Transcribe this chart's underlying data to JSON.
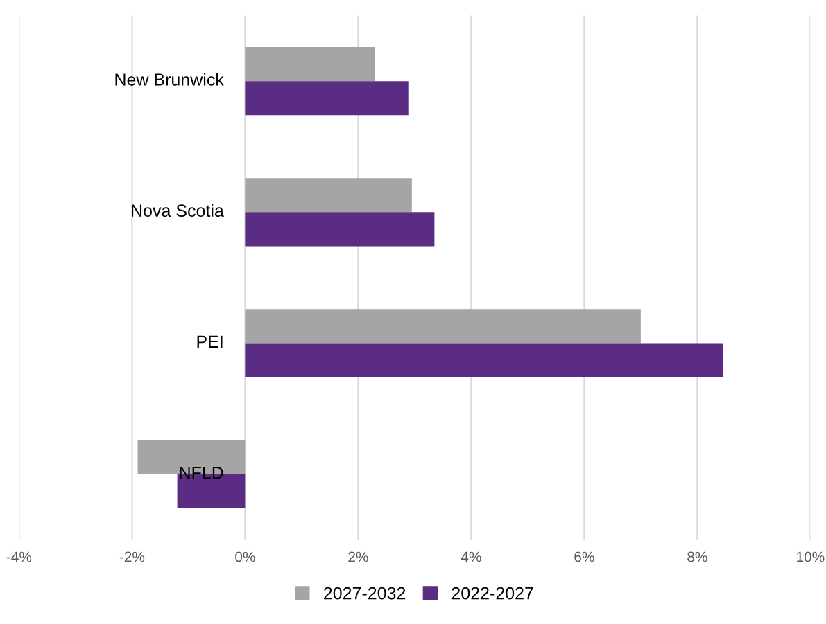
{
  "chart_data": {
    "type": "bar",
    "orientation": "horizontal",
    "categories": [
      "New Brunwick",
      "Nova Scotia",
      "PEI",
      "NFLD"
    ],
    "series": [
      {
        "name": "2027-2032",
        "color": "#a5a5a5",
        "values": [
          2.3,
          2.95,
          7.0,
          -1.9
        ]
      },
      {
        "name": "2022-2027",
        "color": "#5b2c83",
        "values": [
          2.9,
          3.35,
          8.45,
          -1.2
        ]
      }
    ],
    "xlim": [
      -4,
      10
    ],
    "xticks": [
      {
        "value": -4,
        "label": "-4%"
      },
      {
        "value": -2,
        "label": "-2%"
      },
      {
        "value": 0,
        "label": "0%"
      },
      {
        "value": 2,
        "label": "2%"
      },
      {
        "value": 4,
        "label": "4%"
      },
      {
        "value": 6,
        "label": "6%"
      },
      {
        "value": 8,
        "label": "8%"
      },
      {
        "value": 10,
        "label": "10%"
      }
    ],
    "grid": "x",
    "legend": "bottom"
  }
}
